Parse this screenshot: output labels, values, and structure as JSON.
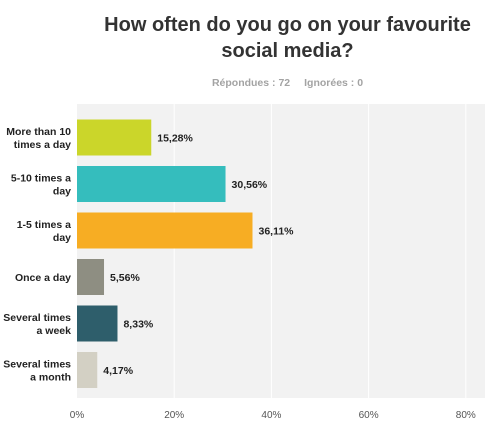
{
  "title": "How often do you go on your favourite social media?",
  "stats": {
    "answered": "Répondues : 72",
    "skipped": "Ignorées : 0"
  },
  "chart_data": {
    "type": "bar",
    "orientation": "horizontal",
    "title": "How often do you go on your favourite social media?",
    "categories": [
      [
        "More than 10",
        "times a day"
      ],
      [
        "5-10 times a",
        "day"
      ],
      [
        "1-5 times a",
        "day"
      ],
      [
        "Once a day"
      ],
      [
        "Several times",
        "a week"
      ],
      [
        "Several times",
        "a month"
      ]
    ],
    "values": [
      15.28,
      30.56,
      36.11,
      5.56,
      8.33,
      4.17
    ],
    "value_labels": [
      "15,28%",
      "30,56%",
      "36,11%",
      "5,56%",
      "8,33%",
      "4,17%"
    ],
    "colors": [
      "#cbd62a",
      "#35bdbd",
      "#f7ad23",
      "#8e8e82",
      "#2e5e6b",
      "#d3d0c4"
    ],
    "xlim": [
      0,
      80
    ],
    "xticks": [
      0,
      20,
      40,
      60,
      80
    ],
    "xtick_labels": [
      "0%",
      "20%",
      "40%",
      "60%",
      "80%"
    ],
    "grid": true
  }
}
